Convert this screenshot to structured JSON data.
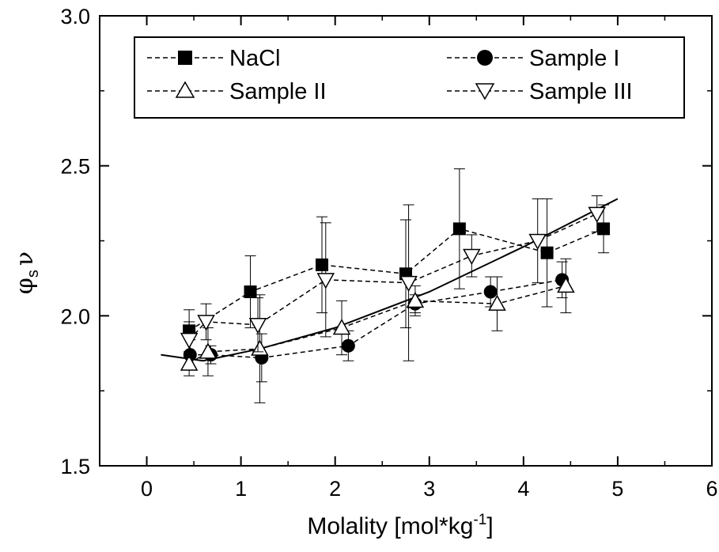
{
  "chart_data": {
    "type": "scatter",
    "xlabel": "Molality [mol*kg",
    "xlabel_sup": "-1",
    "xlabel_close": "]",
    "ylabel_main": "φ",
    "ylabel_sub": "s",
    "ylabel_nu": "ν",
    "xlim": [
      -0.5,
      6
    ],
    "ylim": [
      1.5,
      3.0
    ],
    "x_ticks": [
      "0",
      "1",
      "2",
      "3",
      "4",
      "5",
      "6"
    ],
    "y_ticks": [
      "1.5",
      "2.0",
      "2.5",
      "3.0"
    ],
    "legend_position": "top",
    "grid": false,
    "series": [
      {
        "name": "NaCl",
        "marker": "filled-square",
        "line": "dashed",
        "points": [
          {
            "x": 0.45,
            "y": 1.95,
            "err": 0.07
          },
          {
            "x": 1.1,
            "y": 2.08,
            "err": 0.12
          },
          {
            "x": 1.86,
            "y": 2.17,
            "err": 0.16
          },
          {
            "x": 2.75,
            "y": 2.14,
            "err": 0.18
          },
          {
            "x": 3.32,
            "y": 2.29,
            "err": 0.2
          },
          {
            "x": 4.25,
            "y": 2.21,
            "err": 0.18
          },
          {
            "x": 4.85,
            "y": 2.29,
            "err": 0.08
          }
        ]
      },
      {
        "name": "Sample I",
        "marker": "filled-circle",
        "line": "dashed",
        "points": [
          {
            "x": 0.46,
            "y": 1.87,
            "err": 0.05
          },
          {
            "x": 0.68,
            "y": 1.87,
            "err": 0.03
          },
          {
            "x": 1.22,
            "y": 1.86,
            "err": 0.08
          },
          {
            "x": 2.14,
            "y": 1.9,
            "err": 0.05
          },
          {
            "x": 2.85,
            "y": 2.04,
            "err": 0.03
          },
          {
            "x": 3.65,
            "y": 2.08,
            "err": 0.05
          },
          {
            "x": 4.41,
            "y": 2.12,
            "err": 0.06
          }
        ]
      },
      {
        "name": "Sample II",
        "marker": "open-triangle-up",
        "line": "dashed",
        "points": [
          {
            "x": 0.45,
            "y": 1.84,
            "err": 0.04
          },
          {
            "x": 0.65,
            "y": 1.88,
            "err": 0.08
          },
          {
            "x": 1.2,
            "y": 1.89,
            "err": 0.18
          },
          {
            "x": 2.07,
            "y": 1.96,
            "err": 0.09
          },
          {
            "x": 2.85,
            "y": 2.05,
            "err": 0.05
          },
          {
            "x": 3.72,
            "y": 2.04,
            "err": 0.09
          },
          {
            "x": 4.45,
            "y": 2.1,
            "err": 0.09
          }
        ]
      },
      {
        "name": "Sample III",
        "marker": "open-triangle-down",
        "line": "dashed",
        "points": [
          {
            "x": 0.45,
            "y": 1.92,
            "err": 0.06
          },
          {
            "x": 0.63,
            "y": 1.98,
            "err": 0.06
          },
          {
            "x": 1.18,
            "y": 1.97,
            "err": 0.09
          },
          {
            "x": 1.9,
            "y": 2.12,
            "err": 0.19
          },
          {
            "x": 2.78,
            "y": 2.11,
            "err": 0.26
          },
          {
            "x": 3.45,
            "y": 2.2,
            "err": 0.07
          },
          {
            "x": 4.15,
            "y": 2.25,
            "err": 0.14
          },
          {
            "x": 4.78,
            "y": 2.34,
            "err": 0.06
          }
        ]
      }
    ],
    "fit_line": {
      "style": "solid",
      "x": [
        0.15,
        0.6,
        1.2,
        2.0,
        3.0,
        4.0,
        5.0
      ],
      "y": [
        1.87,
        1.85,
        1.89,
        1.96,
        2.08,
        2.23,
        2.39
      ]
    }
  }
}
